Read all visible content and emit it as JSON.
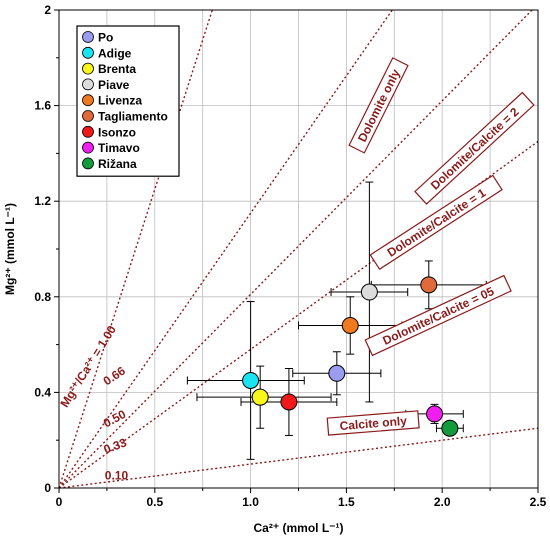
{
  "chart_data": {
    "type": "scatter",
    "xlabel": "Ca²⁺ (mmol L⁻¹)",
    "ylabel": "Mg²⁺ (mmol L⁻¹)",
    "xlim": [
      0,
      2.5
    ],
    "ylim": [
      0,
      2
    ],
    "x_ticks": [
      "0",
      "0.5",
      "1.0",
      "1.5",
      "2.0",
      "2.5"
    ],
    "y_ticks": [
      "0",
      "0.4",
      "0.8",
      "1.2",
      "1.6",
      "2"
    ],
    "x_tick_values": [
      0,
      0.5,
      1.0,
      1.5,
      2.0,
      2.5
    ],
    "y_tick_values": [
      0,
      0.4,
      0.8,
      1.2,
      1.6,
      2
    ],
    "grid": true,
    "legend_position": "top-left",
    "series": [
      {
        "name": "Po",
        "color": "#9a9cf0",
        "x": 1.45,
        "y": 0.48,
        "x_err": [
          0.23,
          0.23
        ],
        "y_err": [
          0.09,
          0.09
        ]
      },
      {
        "name": "Adige",
        "color": "#18e4f2",
        "x": 1.0,
        "y": 0.45,
        "x_err": [
          0.33,
          0.28
        ],
        "y_err": [
          0.33,
          0.33
        ]
      },
      {
        "name": "Brenta",
        "color": "#f7f71b",
        "x": 1.05,
        "y": 0.38,
        "x_err": [
          0.33,
          0.37
        ],
        "y_err": [
          0.13,
          0.13
        ]
      },
      {
        "name": "Piave",
        "color": "#dcdcdc",
        "x": 1.62,
        "y": 0.82,
        "x_err": [
          0.2,
          0.2
        ],
        "y_err": [
          0.46,
          0.46
        ]
      },
      {
        "name": "Livenza",
        "color": "#f07a20",
        "x": 1.52,
        "y": 0.68,
        "x_err": [
          0.27,
          0.27
        ],
        "y_err": [
          0.12,
          0.12
        ]
      },
      {
        "name": "Tagliamento",
        "color": "#e06a3a",
        "x": 1.93,
        "y": 0.85,
        "x_err": [
          0.3,
          0.3
        ],
        "y_err": [
          0.1,
          0.1
        ]
      },
      {
        "name": "Isonzo",
        "color": "#f01818",
        "x": 1.2,
        "y": 0.36,
        "x_err": [
          0.25,
          0.25
        ],
        "y_err": [
          0.14,
          0.14
        ]
      },
      {
        "name": "Timavo",
        "color": "#f01ef0",
        "x": 1.96,
        "y": 0.31,
        "x_err": [
          0.15,
          0.15
        ],
        "y_err": [
          0.04,
          0.04
        ]
      },
      {
        "name": "Rižana",
        "color": "#129b3c",
        "x": 2.04,
        "y": 0.25,
        "x_err": [
          0.07,
          0.07
        ],
        "y_err": [
          0.02,
          0.02
        ]
      }
    ],
    "ratio_lines": [
      {
        "slope": 2.5,
        "label": "Dolomite only"
      },
      {
        "slope": 1.15,
        "label": "Dolomite/Calcite = 2"
      },
      {
        "slope": 0.81,
        "label": "Dolomite/Calcite = 1"
      },
      {
        "slope": 0.58,
        "label": "Dolomite/Calcite = 05"
      },
      {
        "slope": 0.1,
        "label": "Calcite only"
      }
    ],
    "ratio_annotations": [
      "Mg²⁺/Ca²⁺ = 1.00",
      "0.66",
      "0.50",
      "0.33",
      "0.10"
    ],
    "line_color": "#8b1a1a"
  }
}
